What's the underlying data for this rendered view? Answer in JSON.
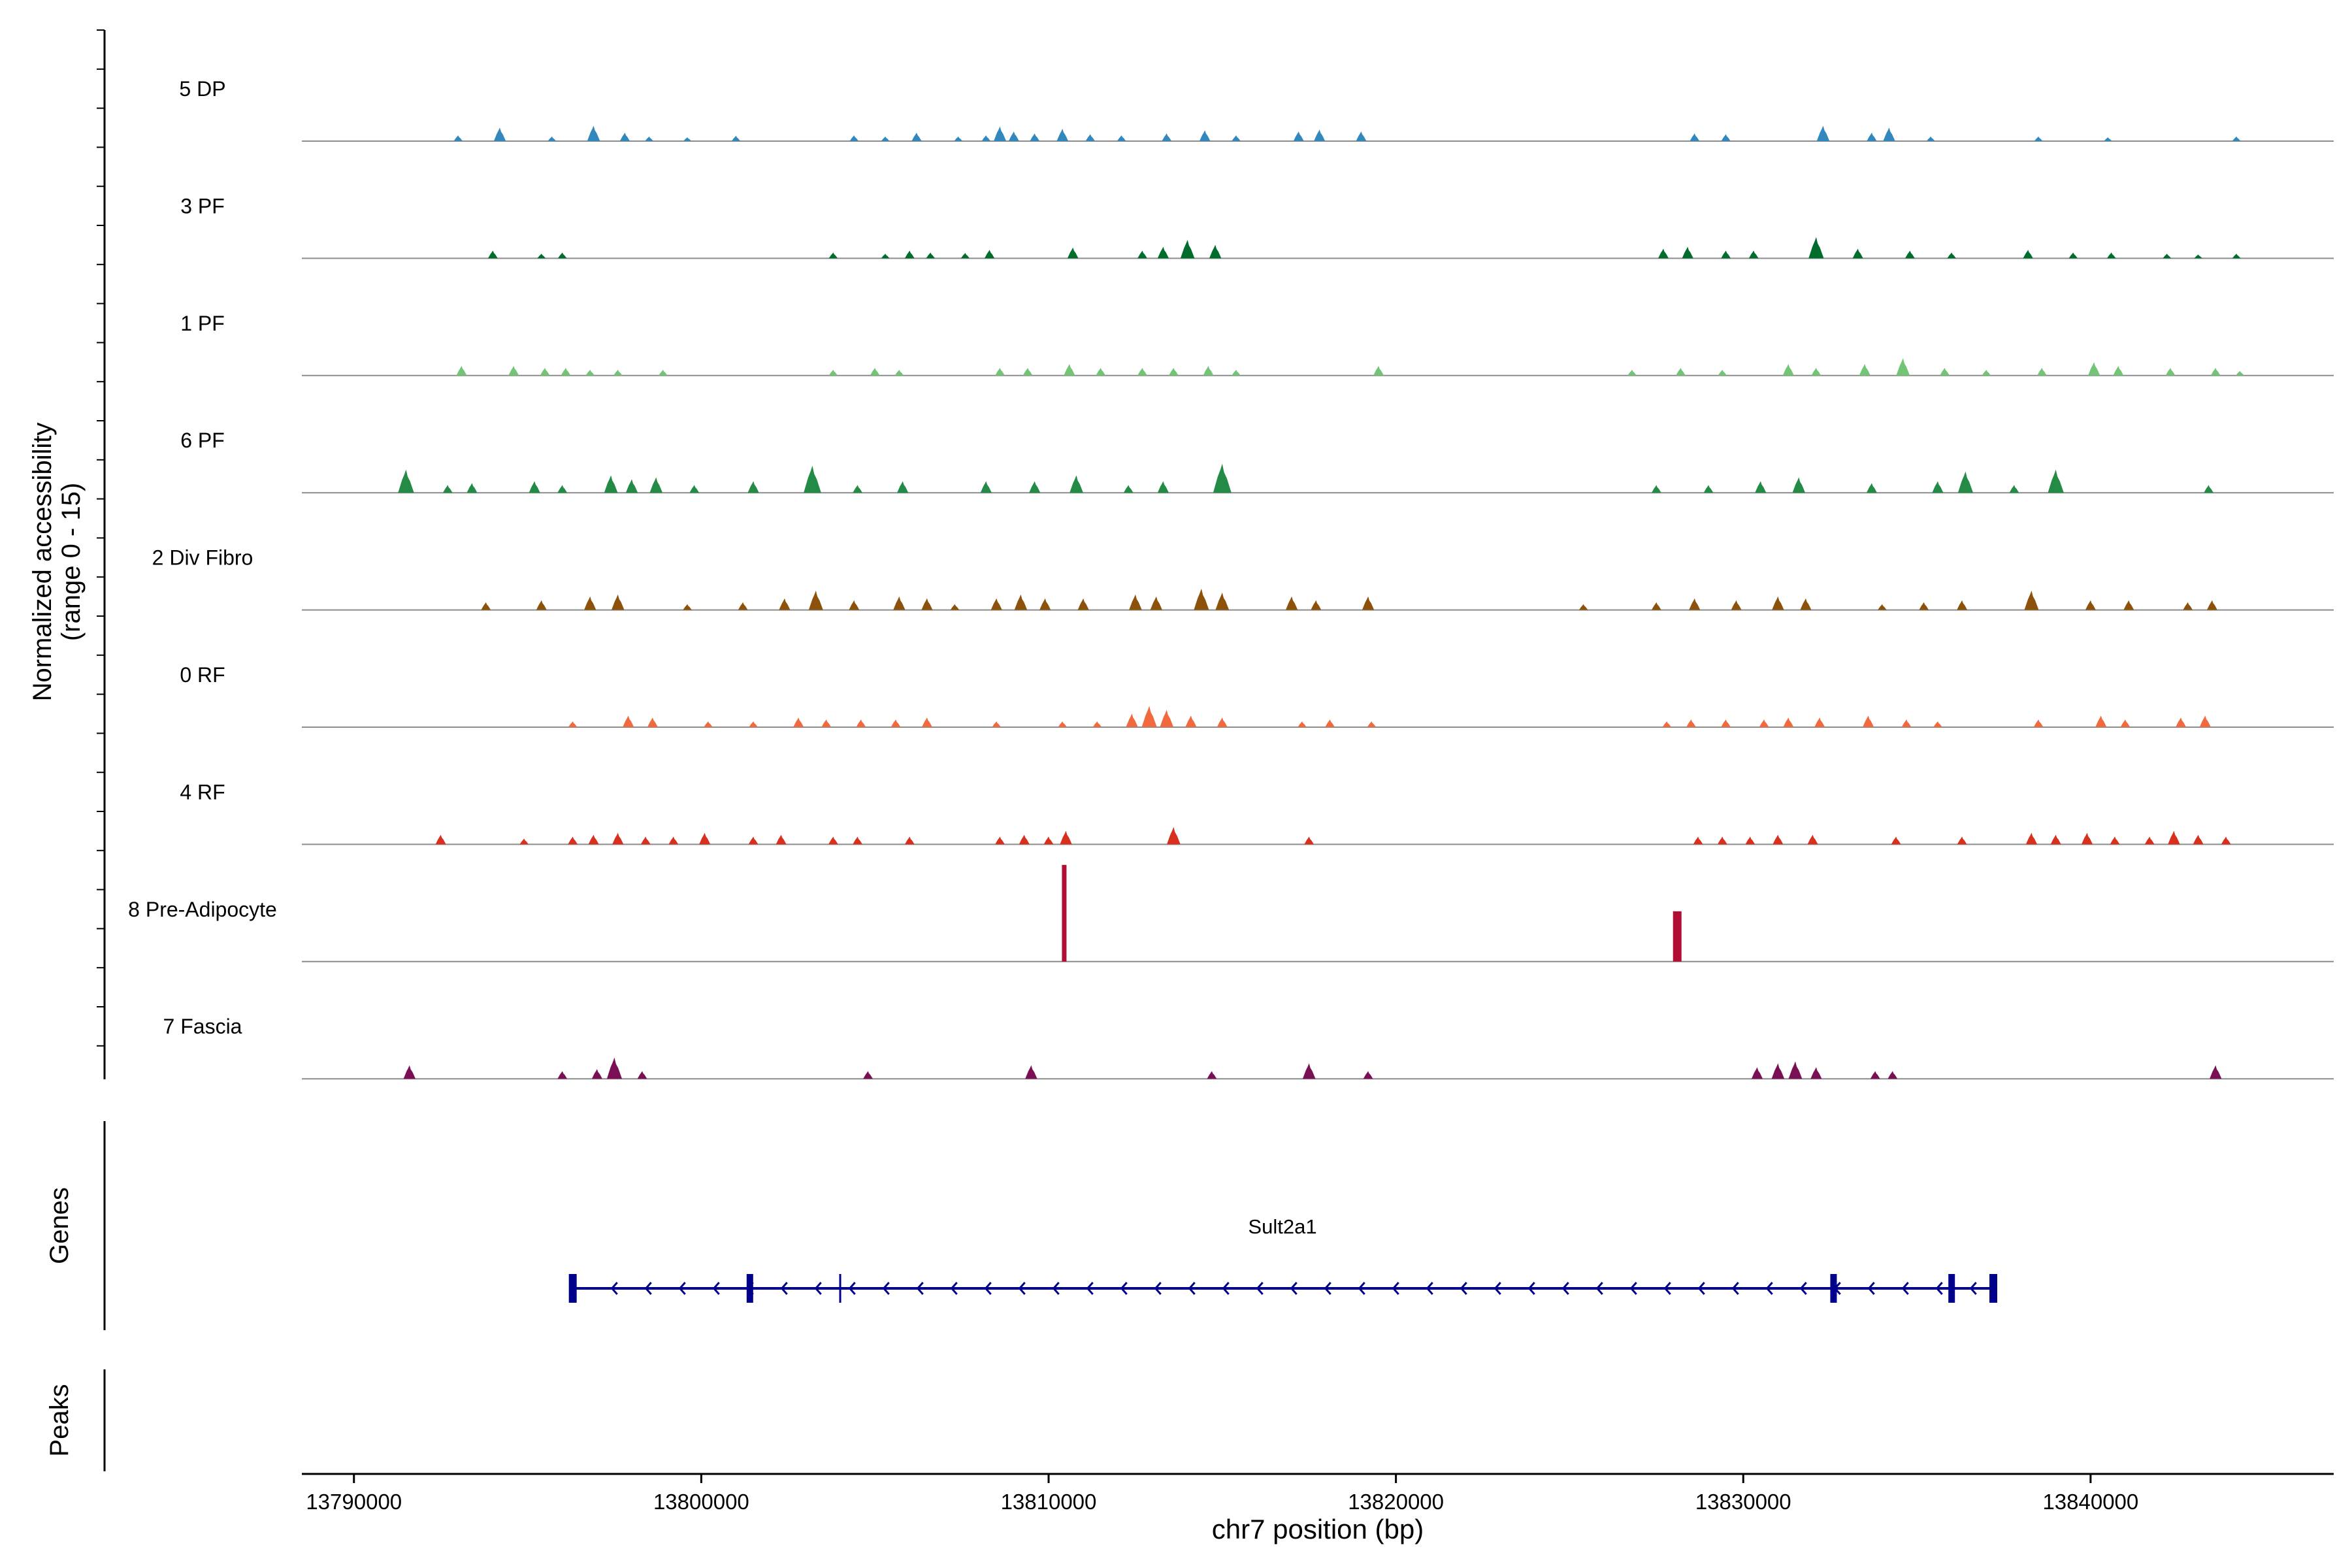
{
  "chart_data": {
    "type": "area",
    "title": "",
    "y_axis_label": "Normalized accessibility",
    "y_axis_sublabel": "(range 0 - 15)",
    "y_range": [
      0,
      15
    ],
    "xlabel": "chr7 position (bp)",
    "xlim": [
      13788500,
      13847000
    ],
    "x_ticks": [
      13790000,
      13800000,
      13810000,
      13820000,
      13830000,
      13840000
    ],
    "tracks": [
      {
        "name": "5 DP",
        "color": "#3288BD",
        "peaks": [
          [
            13793000,
            0.15
          ],
          [
            13794200,
            0.35
          ],
          [
            13795700,
            0.12
          ],
          [
            13796900,
            0.4
          ],
          [
            13797800,
            0.22
          ],
          [
            13798500,
            0.12
          ],
          [
            13799600,
            0.1
          ],
          [
            13801000,
            0.14
          ],
          [
            13804400,
            0.15
          ],
          [
            13805300,
            0.12
          ],
          [
            13806200,
            0.22
          ],
          [
            13807400,
            0.12
          ],
          [
            13808200,
            0.15
          ],
          [
            13808600,
            0.38
          ],
          [
            13809000,
            0.25
          ],
          [
            13809600,
            0.2
          ],
          [
            13810400,
            0.32
          ],
          [
            13811200,
            0.18
          ],
          [
            13812100,
            0.15
          ],
          [
            13813400,
            0.2
          ],
          [
            13814500,
            0.28
          ],
          [
            13815400,
            0.15
          ],
          [
            13817200,
            0.25
          ],
          [
            13817800,
            0.3
          ],
          [
            13819000,
            0.25
          ],
          [
            13828600,
            0.2
          ],
          [
            13829500,
            0.18
          ],
          [
            13832300,
            0.4
          ],
          [
            13833700,
            0.22
          ],
          [
            13834200,
            0.35
          ],
          [
            13835400,
            0.12
          ],
          [
            13838500,
            0.12
          ],
          [
            13840500,
            0.1
          ],
          [
            13844200,
            0.12
          ]
        ]
      },
      {
        "name": "3 PF",
        "color": "#006D2C",
        "peaks": [
          [
            13794000,
            0.2
          ],
          [
            13795400,
            0.12
          ],
          [
            13796000,
            0.15
          ],
          [
            13803800,
            0.15
          ],
          [
            13805300,
            0.12
          ],
          [
            13806000,
            0.2
          ],
          [
            13806600,
            0.15
          ],
          [
            13807600,
            0.14
          ],
          [
            13808300,
            0.22
          ],
          [
            13810700,
            0.28
          ],
          [
            13812700,
            0.2
          ],
          [
            13813300,
            0.3
          ],
          [
            13814000,
            0.48
          ],
          [
            13814800,
            0.35
          ],
          [
            13827700,
            0.25
          ],
          [
            13828400,
            0.3
          ],
          [
            13829500,
            0.2
          ],
          [
            13830300,
            0.2
          ],
          [
            13832100,
            0.55
          ],
          [
            13833300,
            0.25
          ],
          [
            13834800,
            0.2
          ],
          [
            13836000,
            0.15
          ],
          [
            13838200,
            0.22
          ],
          [
            13839500,
            0.15
          ],
          [
            13840600,
            0.15
          ],
          [
            13842200,
            0.12
          ],
          [
            13843100,
            0.1
          ],
          [
            13844200,
            0.12
          ]
        ]
      },
      {
        "name": "1 PF",
        "color": "#74C476",
        "peaks": [
          [
            13793100,
            0.25
          ],
          [
            13794600,
            0.25
          ],
          [
            13795500,
            0.2
          ],
          [
            13796100,
            0.2
          ],
          [
            13796800,
            0.15
          ],
          [
            13797600,
            0.15
          ],
          [
            13798900,
            0.15
          ],
          [
            13803800,
            0.15
          ],
          [
            13805000,
            0.2
          ],
          [
            13805700,
            0.15
          ],
          [
            13808600,
            0.2
          ],
          [
            13809400,
            0.2
          ],
          [
            13810600,
            0.3
          ],
          [
            13811500,
            0.2
          ],
          [
            13812700,
            0.2
          ],
          [
            13813600,
            0.2
          ],
          [
            13814600,
            0.25
          ],
          [
            13815400,
            0.15
          ],
          [
            13819500,
            0.25
          ],
          [
            13826800,
            0.15
          ],
          [
            13828200,
            0.2
          ],
          [
            13829400,
            0.15
          ],
          [
            13831300,
            0.3
          ],
          [
            13832100,
            0.2
          ],
          [
            13833500,
            0.3
          ],
          [
            13834600,
            0.45
          ],
          [
            13835800,
            0.2
          ],
          [
            13837000,
            0.15
          ],
          [
            13838600,
            0.2
          ],
          [
            13840100,
            0.35
          ],
          [
            13840800,
            0.25
          ],
          [
            13842300,
            0.2
          ],
          [
            13843600,
            0.2
          ],
          [
            13844300,
            0.12
          ]
        ]
      },
      {
        "name": "6 PF",
        "color": "#238B45",
        "peaks": [
          [
            13791500,
            0.6
          ],
          [
            13792700,
            0.2
          ],
          [
            13793400,
            0.25
          ],
          [
            13795200,
            0.3
          ],
          [
            13796000,
            0.2
          ],
          [
            13797400,
            0.45
          ],
          [
            13798000,
            0.35
          ],
          [
            13798700,
            0.4
          ],
          [
            13799800,
            0.2
          ],
          [
            13801500,
            0.3
          ],
          [
            13803200,
            0.7
          ],
          [
            13804500,
            0.2
          ],
          [
            13805800,
            0.3
          ],
          [
            13808200,
            0.3
          ],
          [
            13809600,
            0.3
          ],
          [
            13810800,
            0.45
          ],
          [
            13812300,
            0.2
          ],
          [
            13813300,
            0.3
          ],
          [
            13815000,
            0.75
          ],
          [
            13827500,
            0.2
          ],
          [
            13829000,
            0.2
          ],
          [
            13830500,
            0.3
          ],
          [
            13831600,
            0.4
          ],
          [
            13833700,
            0.25
          ],
          [
            13835600,
            0.3
          ],
          [
            13836400,
            0.55
          ],
          [
            13837800,
            0.2
          ],
          [
            13839000,
            0.6
          ],
          [
            13843400,
            0.2
          ]
        ]
      },
      {
        "name": "2 Div Fibro",
        "color": "#8C510A",
        "peaks": [
          [
            13793800,
            0.2
          ],
          [
            13795400,
            0.25
          ],
          [
            13796800,
            0.35
          ],
          [
            13797600,
            0.4
          ],
          [
            13799600,
            0.15
          ],
          [
            13801200,
            0.2
          ],
          [
            13802400,
            0.3
          ],
          [
            13803300,
            0.5
          ],
          [
            13804400,
            0.25
          ],
          [
            13805700,
            0.35
          ],
          [
            13806500,
            0.3
          ],
          [
            13807300,
            0.15
          ],
          [
            13808500,
            0.3
          ],
          [
            13809200,
            0.4
          ],
          [
            13809900,
            0.3
          ],
          [
            13811000,
            0.3
          ],
          [
            13812500,
            0.4
          ],
          [
            13813100,
            0.35
          ],
          [
            13814400,
            0.55
          ],
          [
            13815000,
            0.45
          ],
          [
            13817000,
            0.35
          ],
          [
            13817700,
            0.25
          ],
          [
            13819200,
            0.35
          ],
          [
            13825400,
            0.15
          ],
          [
            13827500,
            0.2
          ],
          [
            13828600,
            0.3
          ],
          [
            13829800,
            0.25
          ],
          [
            13831000,
            0.35
          ],
          [
            13831800,
            0.3
          ],
          [
            13834000,
            0.15
          ],
          [
            13835200,
            0.2
          ],
          [
            13836300,
            0.25
          ],
          [
            13838300,
            0.5
          ],
          [
            13840000,
            0.25
          ],
          [
            13841100,
            0.25
          ],
          [
            13842800,
            0.2
          ],
          [
            13843500,
            0.25
          ]
        ]
      },
      {
        "name": "0 RF",
        "color": "#F16A3F",
        "peaks": [
          [
            13796300,
            0.15
          ],
          [
            13797900,
            0.3
          ],
          [
            13798600,
            0.25
          ],
          [
            13800200,
            0.15
          ],
          [
            13801500,
            0.15
          ],
          [
            13802800,
            0.25
          ],
          [
            13803600,
            0.2
          ],
          [
            13804600,
            0.2
          ],
          [
            13805600,
            0.2
          ],
          [
            13806500,
            0.25
          ],
          [
            13808500,
            0.15
          ],
          [
            13810400,
            0.15
          ],
          [
            13811400,
            0.15
          ],
          [
            13812400,
            0.35
          ],
          [
            13812900,
            0.55
          ],
          [
            13813400,
            0.45
          ],
          [
            13814100,
            0.3
          ],
          [
            13815000,
            0.25
          ],
          [
            13817300,
            0.15
          ],
          [
            13818100,
            0.2
          ],
          [
            13819300,
            0.15
          ],
          [
            13827800,
            0.15
          ],
          [
            13828500,
            0.2
          ],
          [
            13829500,
            0.2
          ],
          [
            13830600,
            0.2
          ],
          [
            13831300,
            0.25
          ],
          [
            13832200,
            0.25
          ],
          [
            13833600,
            0.3
          ],
          [
            13834700,
            0.2
          ],
          [
            13835600,
            0.15
          ],
          [
            13838500,
            0.2
          ],
          [
            13840300,
            0.3
          ],
          [
            13841000,
            0.2
          ],
          [
            13842600,
            0.25
          ],
          [
            13843300,
            0.3
          ]
        ]
      },
      {
        "name": "4 RF",
        "color": "#D7301F",
        "peaks": [
          [
            13792500,
            0.25
          ],
          [
            13794900,
            0.15
          ],
          [
            13796300,
            0.2
          ],
          [
            13796900,
            0.25
          ],
          [
            13797600,
            0.3
          ],
          [
            13798400,
            0.2
          ],
          [
            13799200,
            0.2
          ],
          [
            13800100,
            0.3
          ],
          [
            13801500,
            0.2
          ],
          [
            13802300,
            0.25
          ],
          [
            13803800,
            0.2
          ],
          [
            13804500,
            0.2
          ],
          [
            13806000,
            0.2
          ],
          [
            13808600,
            0.2
          ],
          [
            13809300,
            0.25
          ],
          [
            13810000,
            0.2
          ],
          [
            13810500,
            0.35
          ],
          [
            13813600,
            0.45
          ],
          [
            13817500,
            0.2
          ],
          [
            13828700,
            0.2
          ],
          [
            13829400,
            0.2
          ],
          [
            13830200,
            0.2
          ],
          [
            13831000,
            0.25
          ],
          [
            13832000,
            0.25
          ],
          [
            13834400,
            0.2
          ],
          [
            13836300,
            0.2
          ],
          [
            13838300,
            0.3
          ],
          [
            13839000,
            0.25
          ],
          [
            13839900,
            0.3
          ],
          [
            13840700,
            0.2
          ],
          [
            13841700,
            0.2
          ],
          [
            13842400,
            0.35
          ],
          [
            13843100,
            0.25
          ],
          [
            13843900,
            0.2
          ]
        ]
      },
      {
        "name": "8 Pre-Adipocyte",
        "color": "#B10E36",
        "peaks": [
          [
            13810450,
            2.5
          ],
          [
            13828100,
            1.3
          ]
        ]
      },
      {
        "name": "7 Fascia",
        "color": "#7A0F55",
        "peaks": [
          [
            13791600,
            0.35
          ],
          [
            13796000,
            0.2
          ],
          [
            13797000,
            0.25
          ],
          [
            13797500,
            0.55
          ],
          [
            13798300,
            0.2
          ],
          [
            13804800,
            0.2
          ],
          [
            13809500,
            0.35
          ],
          [
            13814700,
            0.2
          ],
          [
            13817500,
            0.4
          ],
          [
            13819200,
            0.2
          ],
          [
            13830400,
            0.3
          ],
          [
            13831000,
            0.4
          ],
          [
            13831500,
            0.45
          ],
          [
            13832100,
            0.3
          ],
          [
            13833800,
            0.2
          ],
          [
            13834300,
            0.2
          ],
          [
            13843600,
            0.35
          ]
        ]
      }
    ],
    "genes_label": "Genes",
    "gene": {
      "name": "Sult2a1",
      "strand": "-",
      "start": 13796300,
      "end": 13837300,
      "exons": [
        13796300,
        13801400,
        13832600,
        13836000,
        13837200
      ],
      "thin_marks": [
        13804000
      ],
      "color": "#00008B"
    },
    "peaks_label": "Peaks",
    "peaks_track": []
  }
}
